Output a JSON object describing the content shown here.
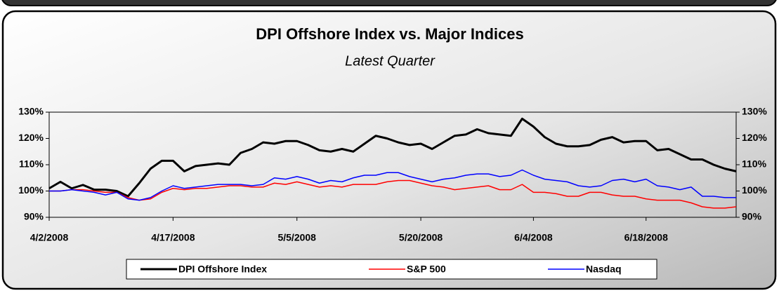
{
  "chart_data": {
    "type": "line",
    "title": "DPI  Offshore Index vs. Major Indices",
    "subtitle": "Latest Quarter",
    "categories": [
      "4/2/2008",
      null,
      null,
      null,
      null,
      null,
      null,
      null,
      null,
      null,
      null,
      "4/17/2008",
      null,
      null,
      null,
      null,
      null,
      null,
      null,
      null,
      null,
      null,
      "5/5/2008",
      null,
      null,
      null,
      null,
      null,
      null,
      null,
      null,
      null,
      null,
      "5/20/2008",
      null,
      null,
      null,
      null,
      null,
      null,
      null,
      null,
      null,
      "6/4/2008",
      null,
      null,
      null,
      null,
      null,
      null,
      null,
      null,
      null,
      "6/18/2008",
      null,
      null,
      null,
      null,
      null,
      null,
      null,
      null
    ],
    "series": [
      {
        "name": "DPI Offshore Index",
        "color": "#000000",
        "values": [
          101,
          103.5,
          101,
          102.3,
          100.5,
          100.5,
          100,
          98,
          103,
          108.5,
          111.5,
          111.5,
          107.5,
          109.5,
          110,
          110.5,
          110,
          114.5,
          116,
          118.5,
          118,
          119,
          119,
          117.5,
          115.5,
          115,
          116,
          115,
          118,
          121,
          120,
          118.5,
          117.5,
          118,
          116,
          118.5,
          121,
          121.5,
          123.5,
          122,
          121.5,
          121,
          127.5,
          124.5,
          120.5,
          118,
          117,
          117,
          117.5,
          119.5,
          120.5,
          118.5,
          119,
          119,
          115.5,
          116,
          114,
          112,
          112,
          110,
          108.5,
          107.5
        ]
      },
      {
        "name": "S&P 500",
        "color": "#ff0000",
        "values": [
          100,
          100,
          100.5,
          100.5,
          100,
          99.5,
          99.5,
          97.5,
          96.5,
          97,
          99.5,
          101,
          100.5,
          101,
          101,
          101.5,
          102,
          102,
          101.5,
          101.5,
          103,
          102.5,
          103.5,
          102.5,
          101.5,
          102,
          101.5,
          102.5,
          102.5,
          102.5,
          103.5,
          104,
          104,
          103,
          102,
          101.5,
          100.5,
          101,
          101.5,
          102,
          100.5,
          100.5,
          102.5,
          99.5,
          99.5,
          99,
          98,
          98,
          99.5,
          99.5,
          98.5,
          98,
          98,
          97,
          96.5,
          96.5,
          96.5,
          95.5,
          94,
          93.5,
          93.5,
          94
        ]
      },
      {
        "name": "Nasdaq",
        "color": "#0000ff",
        "values": [
          100,
          100,
          100.5,
          100,
          99.5,
          98.5,
          99.5,
          97,
          96.5,
          97.5,
          100,
          102,
          101,
          101.5,
          102,
          102.5,
          102.5,
          102.5,
          102,
          102.5,
          105,
          104.5,
          105.5,
          104.5,
          103,
          104,
          103.5,
          105,
          106,
          106,
          107,
          107,
          105.5,
          104.5,
          103.5,
          104.5,
          105,
          106,
          106.5,
          106.5,
          105.5,
          106,
          108,
          106,
          104.5,
          104,
          103.5,
          102,
          101.5,
          102,
          104,
          104.5,
          103.5,
          104.5,
          102,
          101.5,
          100.5,
          101.5,
          98,
          98,
          97.5,
          97.5
        ]
      }
    ],
    "ylim": [
      90,
      130
    ],
    "yticks": [
      {
        "value": 90,
        "label": "90%"
      },
      {
        "value": 100,
        "label": "100%"
      },
      {
        "value": 110,
        "label": "110%"
      },
      {
        "value": 120,
        "label": "120%"
      },
      {
        "value": 130,
        "label": "130%"
      }
    ],
    "grid": false,
    "legend": "bottom"
  }
}
